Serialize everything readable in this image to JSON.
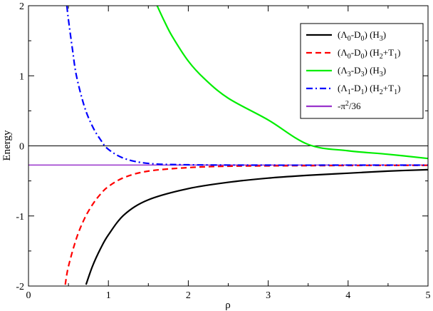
{
  "chart_data": {
    "type": "line",
    "title": "",
    "xlabel": "ρ",
    "ylabel": "Energy",
    "xlim": [
      0,
      5
    ],
    "ylim": [
      -2,
      2
    ],
    "x_ticks": [
      "0",
      "1",
      "2",
      "3",
      "4",
      "5"
    ],
    "y_ticks": [
      "-2",
      "-1",
      "0",
      "1",
      "2"
    ],
    "grid": false,
    "legend_position": "top-right",
    "zero_line": true,
    "series": [
      {
        "name": "(Λ0-D0) (H3)",
        "legend_parts": [
          [
            "(Λ",
            ""
          ],
          [
            "0",
            "sub"
          ],
          [
            "-D",
            ""
          ],
          [
            "0",
            "sub"
          ],
          [
            ") (H",
            ""
          ],
          [
            "3",
            "sub"
          ],
          [
            ")",
            ""
          ]
        ],
        "color": "#000000",
        "style": "solid",
        "x": [
          0.72,
          0.8,
          0.9,
          1.0,
          1.2,
          1.5,
          2.0,
          2.5,
          3.0,
          3.5,
          4.0,
          4.5,
          5.0
        ],
        "y": [
          -1.98,
          -1.72,
          -1.47,
          -1.27,
          -0.98,
          -0.77,
          -0.61,
          -0.52,
          -0.46,
          -0.42,
          -0.39,
          -0.36,
          -0.34
        ]
      },
      {
        "name": "(Λ0-D0) (H2+T1)",
        "legend_parts": [
          [
            "(Λ",
            ""
          ],
          [
            "0",
            "sub"
          ],
          [
            "-D",
            ""
          ],
          [
            "0",
            "sub"
          ],
          [
            ") (H",
            ""
          ],
          [
            "2",
            "sub"
          ],
          [
            "+T",
            ""
          ],
          [
            "1",
            "sub"
          ],
          [
            ")",
            ""
          ]
        ],
        "color": "#ff0000",
        "style": "dashed",
        "x": [
          0.46,
          0.5,
          0.6,
          0.7,
          0.8,
          0.9,
          1.0,
          1.2,
          1.5,
          2.0,
          2.5,
          3.0,
          4.0,
          5.0
        ],
        "y": [
          -1.98,
          -1.72,
          -1.32,
          -1.04,
          -0.84,
          -0.69,
          -0.58,
          -0.45,
          -0.36,
          -0.31,
          -0.29,
          -0.285,
          -0.28,
          -0.277
        ]
      },
      {
        "name": "(Λ3-D3) (H3)",
        "legend_parts": [
          [
            "(Λ",
            ""
          ],
          [
            "3",
            "sub"
          ],
          [
            "-D",
            ""
          ],
          [
            "3",
            "sub"
          ],
          [
            ") (H",
            ""
          ],
          [
            "3",
            "sub"
          ],
          [
            ")",
            ""
          ]
        ],
        "color": "#00ee00",
        "style": "solid",
        "x": [
          1.61,
          1.7,
          1.8,
          2.0,
          2.2,
          2.5,
          3.0,
          3.5,
          4.0,
          4.5,
          5.0
        ],
        "y": [
          2.0,
          1.78,
          1.56,
          1.21,
          0.96,
          0.68,
          0.37,
          0.02,
          -0.07,
          -0.12,
          -0.18
        ]
      },
      {
        "name": "(Λ1-D1) (H2+T1)",
        "legend_parts": [
          [
            "(Λ",
            ""
          ],
          [
            "1",
            "sub"
          ],
          [
            "-D",
            ""
          ],
          [
            "1",
            "sub"
          ],
          [
            ") (H",
            ""
          ],
          [
            "2",
            "sub"
          ],
          [
            "+T",
            ""
          ],
          [
            "1",
            "sub"
          ],
          [
            ")",
            ""
          ]
        ],
        "color": "#0000ff",
        "style": "dashdot",
        "x": [
          0.48,
          0.5,
          0.55,
          0.6,
          0.7,
          0.8,
          0.9,
          1.0,
          1.2,
          1.5,
          2.0,
          3.0,
          4.0,
          5.0
        ],
        "y": [
          2.0,
          1.8,
          1.38,
          1.0,
          0.56,
          0.28,
          0.09,
          -0.05,
          -0.18,
          -0.25,
          -0.27,
          -0.275,
          -0.275,
          -0.275
        ]
      },
      {
        "name": "-π2/36",
        "legend_parts": [
          [
            "-π",
            ""
          ],
          [
            "2",
            "sup"
          ],
          [
            "/36",
            ""
          ]
        ],
        "color": "#9933cc",
        "style": "solid",
        "x": [
          0,
          5
        ],
        "y": [
          -0.274,
          -0.274
        ]
      }
    ]
  }
}
